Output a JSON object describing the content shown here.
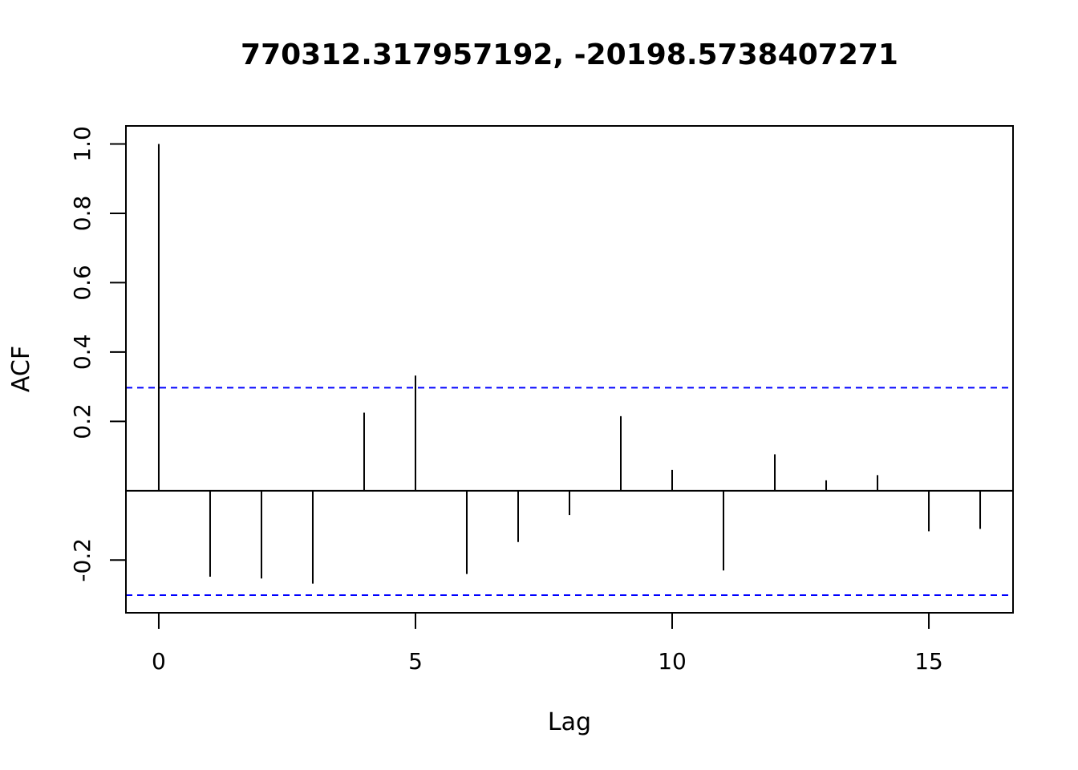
{
  "chart_data": {
    "type": "bar",
    "title": "770312.317957192, -20198.5738407271",
    "xlabel": "Lag",
    "ylabel": "ACF",
    "x": [
      0,
      1,
      2,
      3,
      4,
      5,
      6,
      7,
      8,
      9,
      10,
      11,
      12,
      13,
      14,
      15,
      16
    ],
    "values": [
      1.0,
      -0.248,
      -0.253,
      -0.268,
      0.225,
      0.332,
      -0.24,
      -0.148,
      -0.07,
      0.215,
      0.06,
      -0.23,
      0.105,
      0.03,
      0.045,
      -0.117,
      -0.11
    ],
    "confidence_bounds": [
      0.297,
      -0.301
    ],
    "xlim": [
      -0.64,
      16.64
    ],
    "ylim": [
      -0.352,
      1.052
    ],
    "x_ticks": [
      0,
      5,
      10,
      15
    ],
    "x_tick_labels": [
      "0",
      "5",
      "10",
      "15"
    ],
    "y_ticks": [
      -0.2,
      0.2,
      0.4,
      0.6,
      0.8,
      1.0
    ],
    "y_tick_labels": [
      "-0.2",
      "0.2",
      "0.4",
      "0.6",
      "0.8",
      "1.0"
    ],
    "grid": false,
    "colors": {
      "bars": "#000000",
      "bounds": "#0000ff",
      "zero_line": "#000000"
    }
  }
}
